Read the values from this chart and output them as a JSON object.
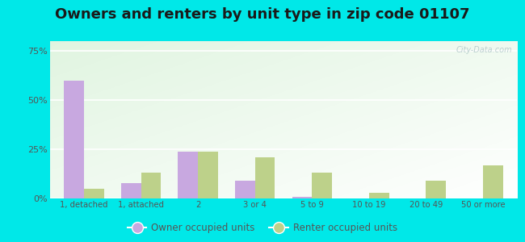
{
  "title": "Owners and renters by unit type in zip code 01107",
  "categories": [
    "1, detached",
    "1, attached",
    "2",
    "3 or 4",
    "5 to 9",
    "10 to 19",
    "20 to 49",
    "50 or more"
  ],
  "owner_values": [
    60,
    8,
    24,
    9,
    1,
    0.2,
    0.2,
    0.2
  ],
  "renter_values": [
    5,
    13,
    24,
    21,
    13,
    3,
    9,
    17
  ],
  "owner_color": "#c8a8e0",
  "renter_color": "#bdd18a",
  "background_outer": "#00e8e8",
  "yticks": [
    0,
    25,
    50,
    75
  ],
  "ytick_labels": [
    "0%",
    "25%",
    "50%",
    "75%"
  ],
  "ylim": [
    0,
    80
  ],
  "title_fontsize": 13,
  "watermark": "City-Data.com",
  "legend_owner": "Owner occupied units",
  "legend_renter": "Renter occupied units"
}
